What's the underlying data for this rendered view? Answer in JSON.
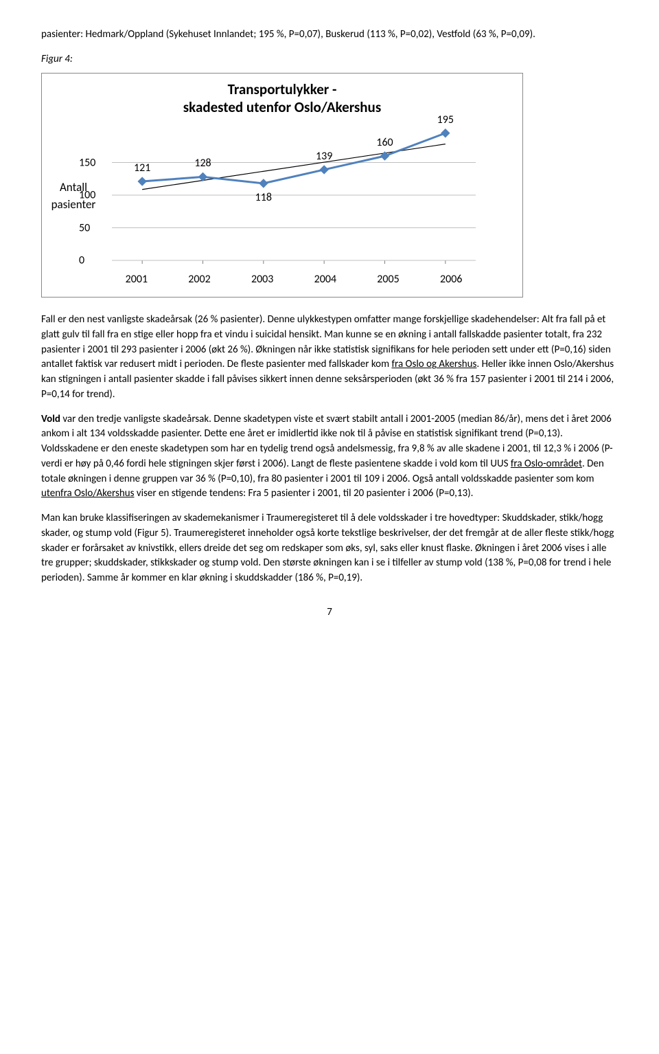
{
  "intro_para": "pasienter: Hedmark/Oppland (Sykehuset Innlandet; 195 %, P=0,07), Buskerud (113 %, P=0,02), Vestfold (63 %, P=0,09).",
  "figure_label": "Figur 4:",
  "chart": {
    "type": "line",
    "title_l1": "Transportulykker -",
    "title_l2": "skadested utenfor Oslo/Akershus",
    "ylabel_l1": "Antall",
    "ylabel_l2": "pasienter",
    "categories": [
      "2001",
      "2002",
      "2003",
      "2004",
      "2005",
      "2006"
    ],
    "values": [
      121,
      128,
      118,
      139,
      160,
      195
    ],
    "data_label_dy": [
      -8,
      -8,
      14,
      -8,
      -8,
      -8
    ],
    "ytick_values": [
      0,
      50,
      100,
      150
    ],
    "ylim_max": 200,
    "grid_color": "#bfbfbf",
    "axis_color": "#808080",
    "line_color": "#4f81bd",
    "line_width": 3,
    "marker_size": 6,
    "marker_color": "#4f81bd",
    "trend_color": "#000000",
    "trend_width": 1.2,
    "background_color": "#ffffff",
    "font_size_title": 21,
    "font_size_labels": 16
  },
  "fall_para_pre": "Fall er den nest vanligste skadeårsak (26 % pasienter). Denne ulykkestypen omfatter mange forskjellige skadehendelser: Alt fra fall på et glatt gulv til fall fra en stige eller hopp fra et vindu i suicidal hensikt. Man kunne se en økning i antall fallskadde pasienter totalt, fra 232 pasienter i 2001 til 293 pasienter i 2006 (økt 26 %). Økningen når ikke statistisk signifikans for hele perioden sett under ett (P=0,16) siden antallet faktisk var redusert midt i perioden. De fleste pasienter med fallskader kom ",
  "fall_u": "fra Oslo og Akershus",
  "fall_para_post": ". Heller ikke innen Oslo/Akershus kan stigningen i antall pasienter skadde i fall påvises sikkert innen denne seksårsperioden (økt 36 % fra 157 pasienter i 2001 til 214 i 2006, P=0,14 for trend).",
  "vold_bold": "Vold",
  "vold_pre": " var den tredje vanligste skadeårsak. Denne skadetypen viste et svært stabilt antall i 2001-2005 (median 86/år), mens det i året 2006 ankom i alt 134 voldsskadde pasienter. Dette ene året er imidlertid ikke nok til å påvise en statistisk signifikant trend (P=0,13). Voldsskadene er den eneste skadetypen som har en tydelig trend også andelsmessig, fra 9,8 % av alle skadene i 2001, til 12,3 % i 2006 (P-verdi er høy på 0,46 fordi hele stigningen skjer først i 2006). Langt de fleste pasientene skadde i vold kom til UUS ",
  "vold_u1": "fra Oslo-området",
  "vold_mid": ". Den totale økningen i denne gruppen var 36 % (P=0,10), fra 80 pasienter i 2001 til 109 i 2006. Også antall voldsskadde pasienter som kom ",
  "vold_u2": "utenfra Oslo/Akershus",
  "vold_post": " viser en stigende tendens: Fra 5 pasienter i 2001, til 20 pasienter i 2006 (P=0,13).",
  "mechanism_para": "Man kan bruke klassifiseringen av skademekanismer i Traumeregisteret til å dele voldsskader i tre hovedtyper: Skuddskader, stikk/hogg skader, og stump vold (Figur 5). Traumeregisteret inneholder også korte tekstlige beskrivelser, der det fremgår at de aller fleste stikk/hogg skader er forårsaket av knivstikk, ellers dreide det seg om redskaper som øks, syl, saks eller knust flaske. Økningen i året 2006 vises i alle tre grupper; skuddskader, stikkskader og stump vold. Den største økningen kan i se i tilfeller av stump vold (138 %, P=0,08 for trend i hele perioden). Samme år kommer en klar økning i skuddskadder (186 %, P=0,19).",
  "page_number": "7"
}
